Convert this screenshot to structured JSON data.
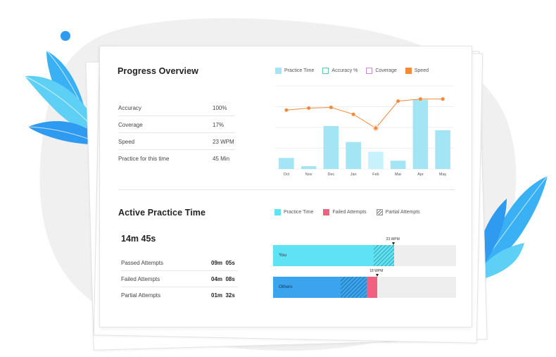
{
  "progress": {
    "title": "Progress Overview",
    "stats": [
      {
        "label": "Accuracy",
        "value": "100%"
      },
      {
        "label": "Coverage",
        "value": "17%"
      },
      {
        "label": "Speed",
        "value": "23 WPM"
      },
      {
        "label": "Practice for this time",
        "value": "45 Min"
      }
    ],
    "legend": [
      {
        "label": "Practice Time",
        "color": "#a3e4f5",
        "style": "fill"
      },
      {
        "label": "Accuracy %",
        "color": "#5cc9a0",
        "style": "outline"
      },
      {
        "label": "Coverage",
        "color": "#c98ad6",
        "style": "outline"
      },
      {
        "label": "Speed",
        "color": "#f5893a",
        "style": "fill"
      }
    ]
  },
  "chart_data": {
    "type": "bar",
    "categories": [
      "Oct",
      "Nov",
      "Dec",
      "Jan",
      "Feb",
      "Mar",
      "Apr",
      "May"
    ],
    "series": [
      {
        "name": "Practice Time",
        "type": "bar",
        "color": "#a3e4f5",
        "values": [
          16,
          4,
          62,
          39,
          25,
          12,
          100,
          56
        ]
      },
      {
        "name": "Speed",
        "type": "line",
        "color": "#f5893a",
        "values": [
          85,
          88,
          89,
          79,
          59,
          98,
          101,
          101
        ]
      }
    ],
    "highlight_category": "Feb",
    "ylim": [
      0,
      120
    ],
    "grid": true,
    "legend_position": "top"
  },
  "active": {
    "title": "Active Practice Time",
    "total": "14m 45s",
    "legend": [
      {
        "label": "Practice Time",
        "color": "#5ee3f5",
        "style": "fill"
      },
      {
        "label": "Failed Attempts",
        "color": "#f2607f",
        "style": "fill"
      },
      {
        "label": "Partial Attempts",
        "color": "#888888",
        "style": "hatch"
      }
    ],
    "attempts": [
      {
        "label": "Passed Attempts",
        "min": "09m",
        "sec": "05s"
      },
      {
        "label": "Failed Attempts",
        "min": "04m",
        "sec": "08s"
      },
      {
        "label": "Partial Attempts",
        "min": "01m",
        "sec": "32s"
      }
    ],
    "bars": [
      {
        "label": "You",
        "marker": "23 WPM",
        "fill_fraction": 0.66,
        "fill_color": "#5ee3f5",
        "partial_from": 0.55,
        "failed_fraction": 0
      },
      {
        "label": "Others",
        "marker": "18 WPM",
        "fill_fraction": 0.57,
        "fill_color": "#3aa4ee",
        "partial_from": 0.37,
        "failed_fraction": 0.06
      }
    ]
  }
}
